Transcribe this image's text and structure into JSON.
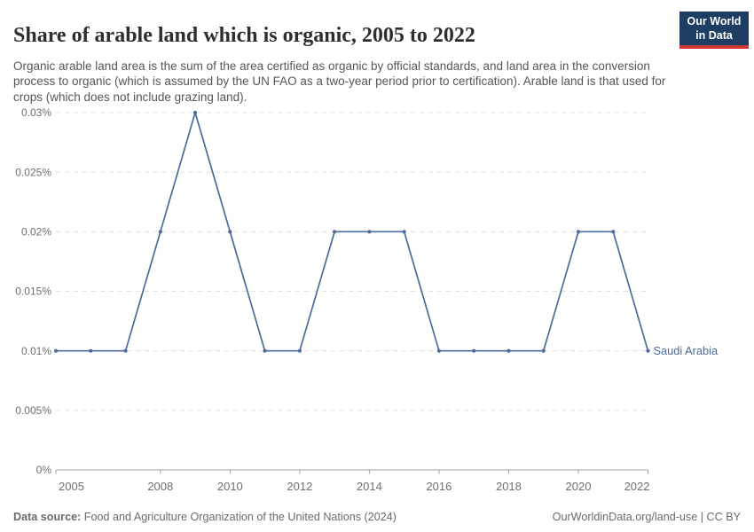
{
  "header": {
    "title": "Share of arable land which is organic, 2005 to 2022",
    "subtitle": "Organic arable land area is the sum of the area certified as organic by official standards, and land area in the conversion process to organic (which is assumed by the UN FAO as a two-year period prior to certification). Arable land is that used for crops (which does not include grazing land).",
    "logo": {
      "line1": "Our World",
      "line2": "in Data",
      "bg_color": "#1d3d63",
      "accent_color": "#d13832"
    }
  },
  "chart_data": {
    "type": "line",
    "title": "Share of arable land which is organic, 2005 to 2022",
    "xlabel": "",
    "ylabel": "",
    "unit": "%",
    "x": [
      2005,
      2006,
      2007,
      2008,
      2009,
      2010,
      2011,
      2012,
      2013,
      2014,
      2015,
      2016,
      2017,
      2018,
      2019,
      2020,
      2021,
      2022
    ],
    "series": [
      {
        "name": "Saudi Arabia",
        "color": "#4c6a9c",
        "values": [
          0.01,
          0.01,
          0.01,
          0.02,
          0.03,
          0.02,
          0.01,
          0.01,
          0.02,
          0.02,
          0.02,
          0.01,
          0.01,
          0.01,
          0.01,
          0.02,
          0.02,
          0.01
        ]
      }
    ],
    "xlim": [
      2005,
      2022
    ],
    "ylim": [
      0,
      0.03
    ],
    "x_ticks": [
      2005,
      2008,
      2010,
      2012,
      2014,
      2016,
      2018,
      2020,
      2022
    ],
    "y_ticks": [
      0,
      0.005,
      0.01,
      0.015,
      0.02,
      0.025,
      0.03
    ],
    "y_tick_labels": [
      "0%",
      "0.005%",
      "0.01%",
      "0.015%",
      "0.02%",
      "0.025%",
      "0.03%"
    ],
    "grid": "horizontal-dashed",
    "legend_position": "end-of-line",
    "end_label": "Saudi Arabia",
    "colors": {
      "gridline": "#e0e0e0",
      "axis": "#a5a5a5",
      "tick_label": "#6f6f6f",
      "series": "#4c6a9c"
    }
  },
  "footer": {
    "source_label": "Data source:",
    "source_text": " Food and Agriculture Organization of the United Nations (2024)",
    "right_text": "OurWorldinData.org/land-use | CC BY"
  }
}
